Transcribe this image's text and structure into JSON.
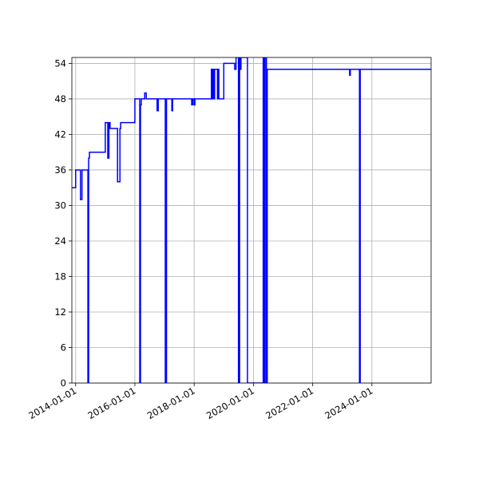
{
  "chart_data": {
    "type": "line",
    "title": "",
    "xlabel": "",
    "ylabel": "",
    "x_type": "date",
    "xlim": [
      "2013-11-15",
      "2025-12-31"
    ],
    "ylim": [
      0,
      55
    ],
    "grid": true,
    "x_ticks": [
      "2014-01-01",
      "2016-01-01",
      "2018-01-01",
      "2020-01-01",
      "2022-01-01",
      "2024-01-01"
    ],
    "y_ticks": [
      0,
      6,
      12,
      18,
      24,
      30,
      36,
      42,
      48,
      54
    ],
    "line_color": "#0000ff",
    "series": [
      {
        "x": [
          "2013-11-15",
          "2014-01-01",
          "2014-01-01",
          "2014-03-01",
          "2014-03-01",
          "2014-03-20",
          "2014-03-20",
          "2014-06-01",
          "2014-06-01",
          "2014-06-10",
          "2014-06-10",
          "2014-06-20",
          "2014-06-20",
          "2014-07-01",
          "2014-07-01",
          "2015-01-01",
          "2015-01-01",
          "2015-02-01",
          "2015-02-01",
          "2015-02-15",
          "2015-02-15",
          "2015-03-01",
          "2015-03-01",
          "2015-06-01",
          "2015-06-01",
          "2015-07-01",
          "2015-07-01",
          "2015-07-10",
          "2015-07-10",
          "2016-01-01",
          "2016-01-01",
          "2016-03-01",
          "2016-03-01",
          "2016-03-10",
          "2016-03-10",
          "2016-03-20",
          "2016-03-20",
          "2016-05-01",
          "2016-05-01",
          "2016-05-20",
          "2016-05-20",
          "2016-10-01",
          "2016-10-01",
          "2016-10-15",
          "2016-10-15",
          "2017-01-10",
          "2017-01-10",
          "2017-01-25",
          "2017-01-25",
          "2017-04-01",
          "2017-04-01",
          "2017-04-10",
          "2017-04-10",
          "2017-12-01",
          "2017-12-01",
          "2017-12-15",
          "2017-12-15",
          "2018-01-01",
          "2018-01-01",
          "2018-01-10",
          "2018-01-10",
          "2018-08-01",
          "2018-08-01",
          "2018-08-10",
          "2018-08-10",
          "2018-08-20",
          "2018-08-20",
          "2018-09-01",
          "2018-09-01",
          "2018-09-10",
          "2018-09-10",
          "2018-10-15",
          "2018-10-15",
          "2018-10-25",
          "2018-10-25",
          "2018-11-01",
          "2018-11-01",
          "2019-01-01",
          "2019-01-01",
          "2019-05-15",
          "2019-05-15",
          "2019-06-01",
          "2019-06-01",
          "2019-07-01",
          "2019-07-01",
          "2019-07-15",
          "2019-07-15",
          "2019-07-25",
          "2019-07-25",
          "2019-08-01",
          "2019-08-01",
          "2019-10-20",
          "2019-10-20",
          "2020-05-01",
          "2020-05-01",
          "2020-05-10",
          "2020-05-10",
          "2020-05-25",
          "2020-05-25",
          "2020-06-10",
          "2020-06-10",
          "2020-06-20",
          "2020-06-20",
          "2020-07-01",
          "2020-07-01",
          "2023-04-01",
          "2023-04-01",
          "2023-04-10",
          "2023-04-10",
          "2023-08-01",
          "2023-08-01",
          "2023-08-10",
          "2023-08-10",
          "2025-12-31"
        ],
        "y": [
          33,
          33,
          36,
          36,
          31,
          31,
          36,
          36,
          0,
          0,
          38,
          38,
          39,
          39,
          39,
          39,
          44,
          44,
          38,
          38,
          44,
          44,
          43,
          43,
          34,
          34,
          43,
          43,
          44,
          44,
          48,
          48,
          0,
          0,
          47,
          47,
          48,
          48,
          49,
          49,
          48,
          48,
          46,
          46,
          48,
          48,
          0,
          0,
          48,
          48,
          46,
          46,
          48,
          48,
          47,
          47,
          48,
          48,
          47,
          47,
          48,
          48,
          53,
          53,
          48,
          48,
          53,
          53,
          48,
          48,
          53,
          53,
          48,
          48,
          53,
          53,
          48,
          48,
          54,
          54,
          53,
          53,
          55,
          55,
          0,
          0,
          55,
          55,
          53,
          53,
          55,
          55,
          0,
          0,
          55,
          55,
          0,
          0,
          55,
          55,
          0,
          0,
          53,
          53,
          53,
          53,
          52,
          52,
          53,
          53,
          0,
          0,
          53,
          53
        ]
      }
    ]
  }
}
